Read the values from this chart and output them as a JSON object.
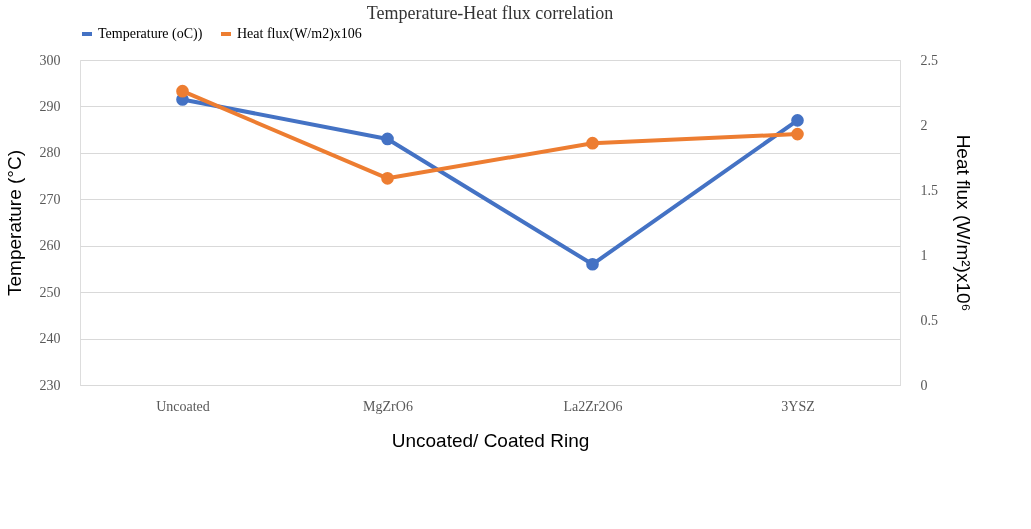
{
  "chart_data": {
    "type": "line",
    "title": "Temperature-Heat flux correlation",
    "xlabel": "Uncoated/ Coated Ring",
    "ylabel": "Temperature (°C)",
    "y2label": "Heat flux (W/m²)x10⁶",
    "categories": [
      "Uncoated",
      "MgZrO6",
      "La2Zr2O6",
      "3YSZ"
    ],
    "series": [
      {
        "name": "Temperature (oC))",
        "color": "#4472c4",
        "values": [
          291.5,
          283,
          256,
          287
        ]
      },
      {
        "name": "Heat flux(W/m2)x106",
        "color": "#ed7d31",
        "axis": "y2",
        "values": [
          2.26,
          1.59,
          1.86,
          1.93
        ]
      }
    ],
    "ylim": [
      230,
      300
    ],
    "yticks": [
      230,
      240,
      250,
      260,
      270,
      280,
      290,
      300
    ],
    "y2lim": [
      0,
      2.5
    ],
    "y2ticks": [
      0,
      0.5,
      1,
      1.5,
      2,
      2.5
    ],
    "grid": "y",
    "legend": "top",
    "marker": "circle",
    "line_style": "solid"
  }
}
